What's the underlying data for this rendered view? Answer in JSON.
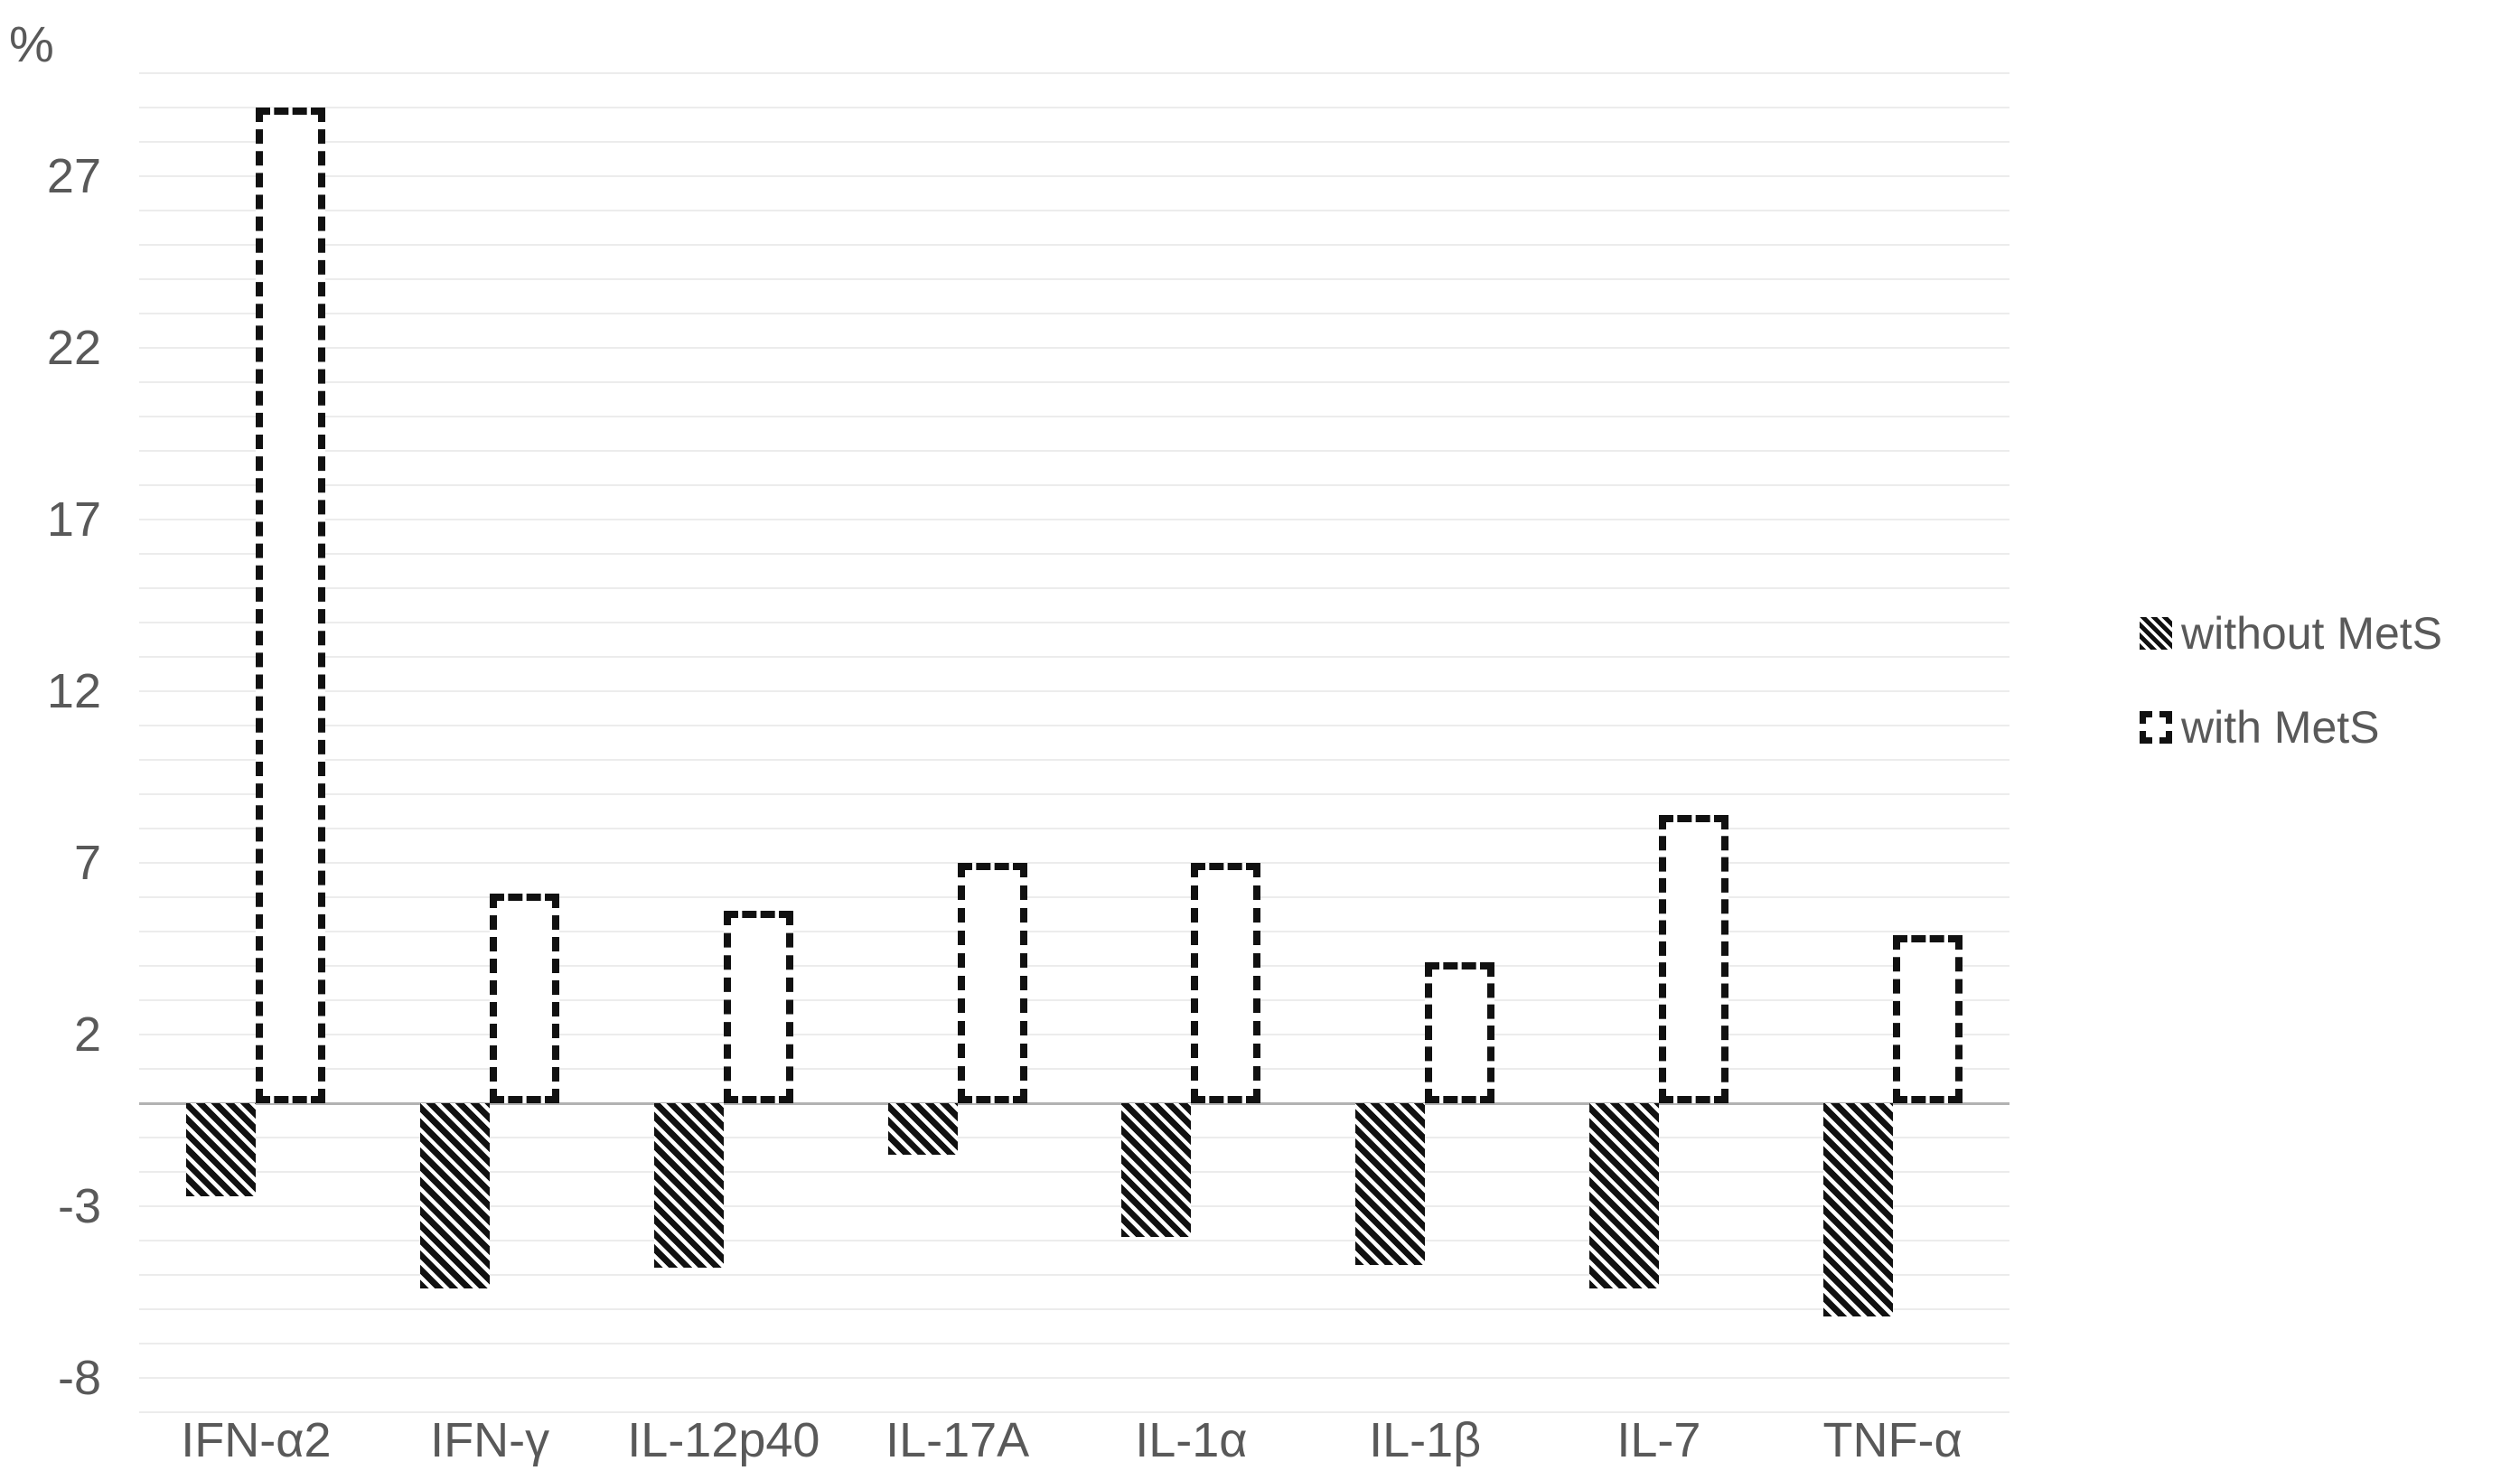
{
  "chart_data": {
    "type": "bar",
    "title": "",
    "ylabel": "%",
    "xlabel": "",
    "categories": [
      "IFN-α2",
      "IFN-γ",
      "IL-12p40",
      "IL-17A",
      "IL-1α",
      "IL-1β",
      "IL-7",
      "TNF-α"
    ],
    "series": [
      {
        "name": "without MetS",
        "style": "hatched-diagonal",
        "values": [
          -2.7,
          -5.4,
          -4.8,
          -1.5,
          -3.9,
          -4.7,
          -5.4,
          -6.2
        ]
      },
      {
        "name": "with MetS",
        "style": "dashed-outline",
        "values": [
          29.0,
          6.1,
          5.6,
          7.0,
          7.0,
          4.1,
          8.4,
          4.9
        ]
      }
    ],
    "y_ticks": [
      27,
      22,
      17,
      12,
      7,
      2,
      -3,
      -8
    ],
    "ylim": [
      -9,
      30
    ],
    "gridline_step": 1,
    "grid": true,
    "legend_position": "right"
  },
  "colors": {
    "text": "#595959",
    "gridline": "#ececec",
    "zero_line": "#b2b2b2",
    "bar": "#111111",
    "background": "#ffffff"
  }
}
